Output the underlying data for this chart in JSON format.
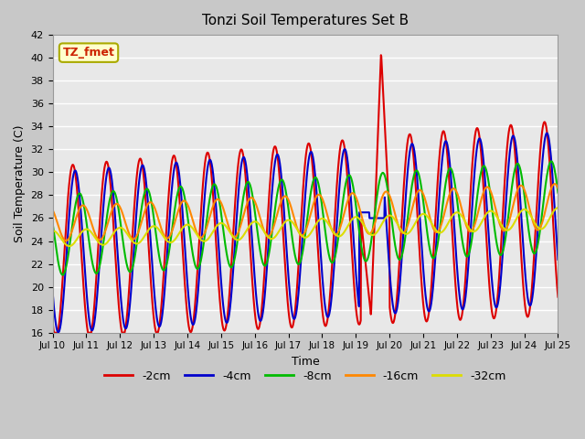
{
  "title": "Tonzi Soil Temperatures Set B",
  "xlabel": "Time",
  "ylabel": "Soil Temperature (C)",
  "ylim": [
    16,
    42
  ],
  "yticks": [
    16,
    18,
    20,
    22,
    24,
    26,
    28,
    30,
    32,
    34,
    36,
    38,
    40,
    42
  ],
  "annotation_label": "TZ_fmet",
  "annotation_text_color": "#cc2200",
  "annotation_bg_color": "#ffffcc",
  "annotation_edge_color": "#aaaa00",
  "series": [
    {
      "label": "-2cm",
      "color": "#dd0000",
      "lw": 1.5
    },
    {
      "label": "-4cm",
      "color": "#0000cc",
      "lw": 1.5
    },
    {
      "label": "-8cm",
      "color": "#00bb00",
      "lw": 1.5
    },
    {
      "label": "-16cm",
      "color": "#ff8800",
      "lw": 1.5
    },
    {
      "label": "-32cm",
      "color": "#dddd00",
      "lw": 1.5
    }
  ],
  "xtick_labels": [
    "Jul 10",
    "Jul 11",
    "Jul 12",
    "Jul 13",
    "Jul 14",
    "Jul 15",
    "Jul 16",
    "Jul 17",
    "Jul 18",
    "Jul 19",
    "Jul 20",
    "Jul 21",
    "Jul 22",
    "Jul 23",
    "Jul 24",
    "Jul 25"
  ],
  "grid_color": "#ffffff",
  "fig_bg": "#c8c8c8",
  "ax_bg": "#e8e8e8"
}
